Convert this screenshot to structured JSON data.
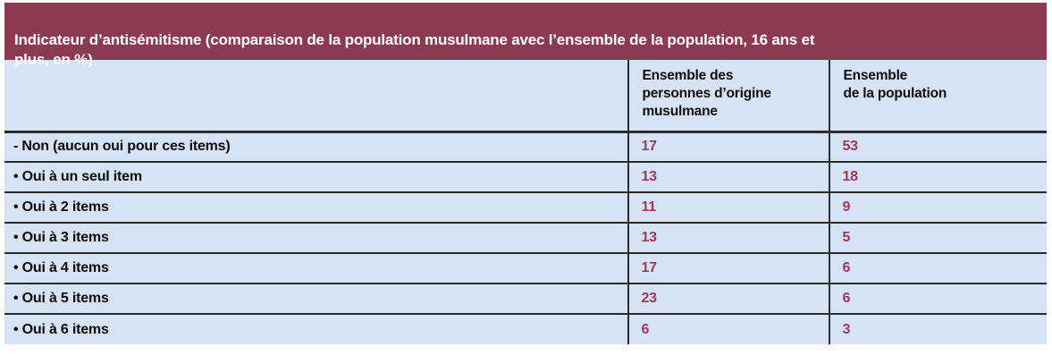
{
  "title": "Indicateur d’antisémitisme (comparaison de la population musulmane avec l’ensemble de la population, 16 ans et\nplus, en %)",
  "table": {
    "columns": {
      "label": "",
      "musulmane": "Ensemble des\npersonnes d’origine\nmusulmane",
      "population": "Ensemble\nde la population"
    },
    "rows": [
      {
        "label": "- Non (aucun oui pour ces items)",
        "musulmane": "17",
        "population": "53"
      },
      {
        "label": "• Oui à un seul item",
        "musulmane": "13",
        "population": "18"
      },
      {
        "label": "• Oui à 2 items",
        "musulmane": "11",
        "population": "9"
      },
      {
        "label": "• Oui à 3 items",
        "musulmane": "13",
        "population": "5"
      },
      {
        "label": "• Oui à 4 items",
        "musulmane": "17",
        "population": "6"
      },
      {
        "label": "• Oui à 5 items",
        "musulmane": "23",
        "population": "6"
      },
      {
        "label": "• Oui à 6 items",
        "musulmane": "6",
        "population": "3"
      }
    ]
  },
  "colors": {
    "title_bar_bg": "#8C3A54",
    "title_text": "#FFFFFF",
    "table_bg": "#D6E2F5",
    "value_text": "#9B3A56",
    "label_text": "#0B0B0B",
    "border": "#2C2C2C"
  },
  "chart_data": {
    "type": "table",
    "title": "Indicateur d’antisémitisme (comparaison de la population musulmane avec l’ensemble de la population, 16 ans et plus, en %)",
    "categories": [
      "- Non (aucun oui pour ces items)",
      "• Oui à un seul item",
      "• Oui à 2 items",
      "• Oui à 3 items",
      "• Oui à 4 items",
      "• Oui à 5 items",
      "• Oui à 6 items"
    ],
    "series": [
      {
        "name": "Ensemble des personnes d’origine musulmane",
        "values": [
          17,
          13,
          11,
          13,
          17,
          23,
          6
        ]
      },
      {
        "name": "Ensemble de la population",
        "values": [
          53,
          18,
          9,
          5,
          6,
          6,
          3
        ]
      }
    ]
  }
}
